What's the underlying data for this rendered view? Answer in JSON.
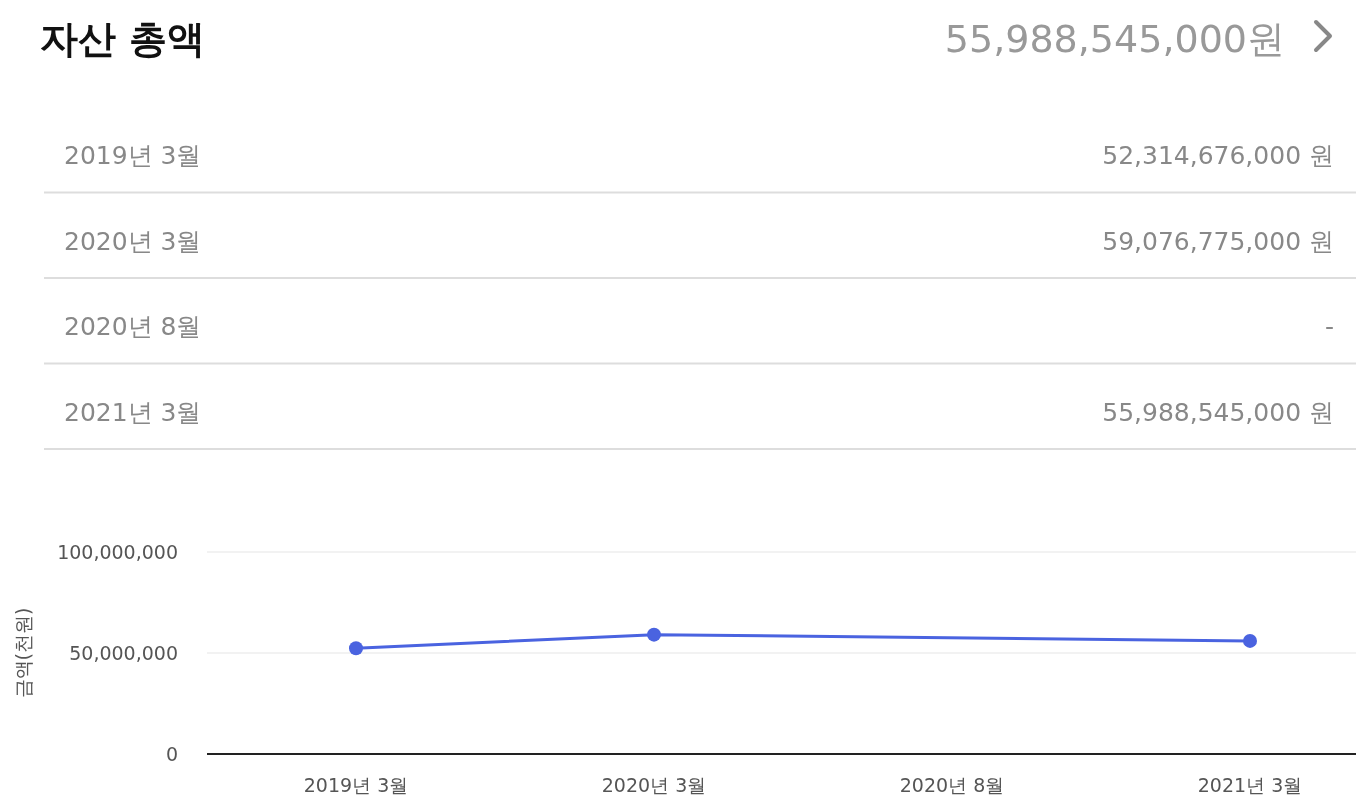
{
  "chart_data": {
    "type": "line",
    "title": "자산 총액",
    "subtitle": "55,988,545,000원",
    "categories": [
      "2019년 3월",
      "2020년 3월",
      "2020년 8월",
      "2021년 3월"
    ],
    "series": [
      {
        "color": "#4a63e0",
        "values": [
          52314676,
          59076775,
          null,
          55988545
        ]
      }
    ],
    "value_labels": [
      "52,314,676,000 원",
      "59,076,775,000 원",
      "-",
      "55,988,545,000 원"
    ],
    "ylabel": "금액(천원)",
    "ylim": [
      0,
      100000000
    ],
    "yticks": [
      0,
      {
        "value": 50000000,
        "label": "50,000,000"
      },
      {
        "value": 100000000,
        "label": "100,000,000"
      }
    ],
    "grid": "y",
    "marker": "circle",
    "line_style": "solid"
  }
}
